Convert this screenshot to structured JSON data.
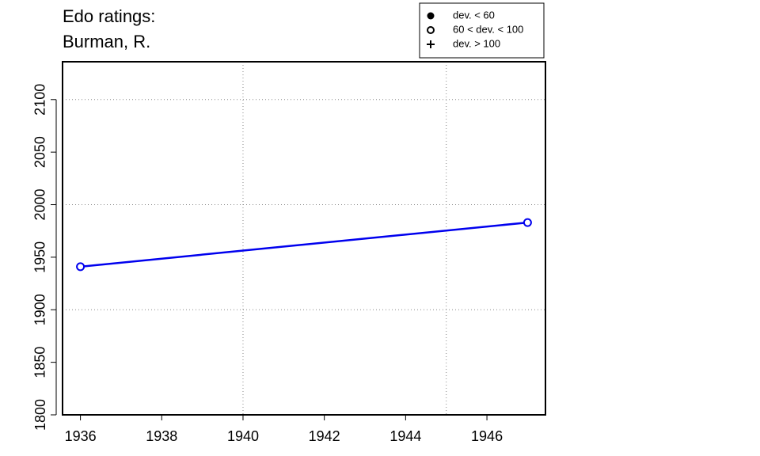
{
  "chart_data": {
    "type": "line",
    "title": "Edo ratings:",
    "subtitle": "Burman, R.",
    "x": [
      1936,
      1947
    ],
    "series": [
      {
        "color": "#0000ee",
        "marker": "open-circle",
        "values": [
          1941,
          1983
        ]
      }
    ],
    "xlim": [
      1935.56,
      1947.44
    ],
    "ylim": [
      1800,
      2136
    ],
    "xticks": [
      1936,
      1938,
      1940,
      1942,
      1944,
      1946
    ],
    "yticks": [
      1800,
      1850,
      1900,
      1950,
      2000,
      2050,
      2100
    ],
    "xgrid": [
      1940,
      1945
    ],
    "ygrid": [
      1900,
      2000,
      2100
    ],
    "legend_position": "top-right",
    "legend": [
      {
        "label": "dev. < 60",
        "symbol": "filled-circle"
      },
      {
        "label": "60 < dev. < 100",
        "symbol": "open-circle"
      },
      {
        "label": "dev. > 100",
        "symbol": "plus"
      }
    ]
  }
}
